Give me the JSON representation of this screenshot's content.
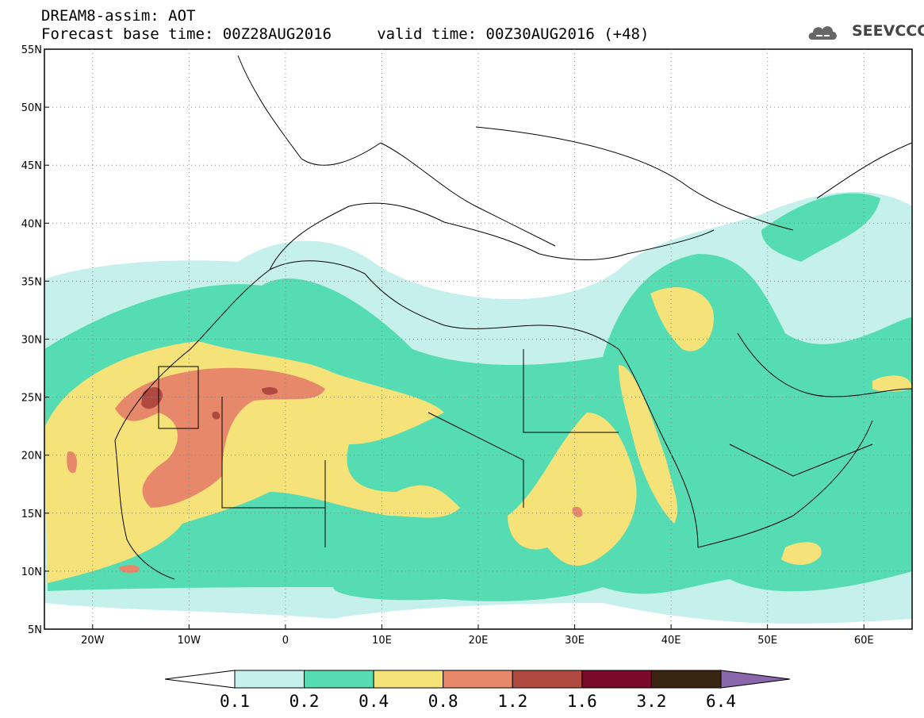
{
  "header": {
    "title_line1": "DREAM8-assim: AOT",
    "title_line2": "Forecast base time: 00Z28AUG2016     valid time: 00Z30AUG2016 (+48)",
    "logo_text": "SEEVCCC",
    "logo_icon": "cloud-logo-icon"
  },
  "map": {
    "variable": "AOT",
    "lon_range": [
      -25,
      65
    ],
    "lat_range": [
      5,
      55
    ],
    "lat_ticks": [
      "55N",
      "50N",
      "45N",
      "40N",
      "35N",
      "30N",
      "25N",
      "20N",
      "15N",
      "10N",
      "5N"
    ],
    "lon_ticks": [
      "20W",
      "10W",
      "0",
      "10E",
      "20E",
      "30E",
      "40E",
      "50E",
      "60E"
    ]
  },
  "colorbar": {
    "labels": [
      "0.1",
      "0.2",
      "0.4",
      "0.8",
      "1.2",
      "1.6",
      "3.2",
      "6.4"
    ],
    "colors": [
      "#c5f0ec",
      "#55dcb2",
      "#f5e278",
      "#e8886a",
      "#b04a40",
      "#7a0a2a",
      "#3a2412",
      "#8a66aa"
    ],
    "extend": "both"
  }
}
